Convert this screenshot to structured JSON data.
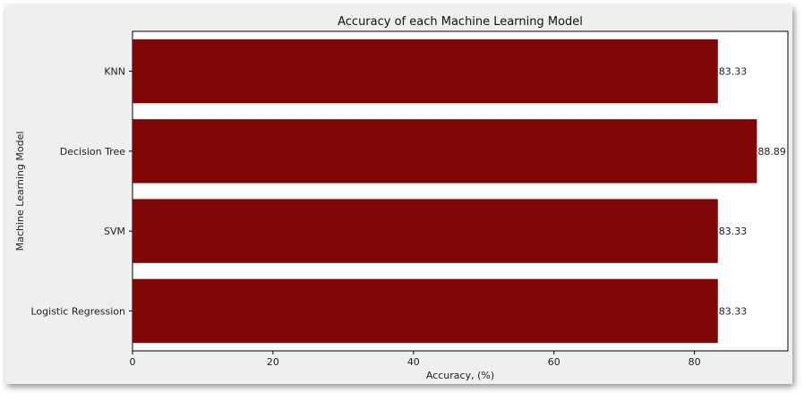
{
  "chart_data": {
    "type": "bar",
    "orientation": "horizontal",
    "title": "Accuracy of each Machine Learning Model",
    "xlabel": "Accuracy, (%)",
    "ylabel": "Machine Learning Model",
    "categories": [
      "KNN",
      "Decision Tree",
      "SVM",
      "Logistic Regression"
    ],
    "values": [
      83.33,
      88.89,
      83.33,
      83.33
    ],
    "data_labels": [
      "83.33",
      "88.89",
      "83.33",
      "83.33"
    ],
    "xlim": [
      0,
      93.3
    ],
    "xticks": [
      0,
      20,
      40,
      60,
      80
    ],
    "grid": false,
    "legend": "none",
    "bar_color": "#800505"
  }
}
